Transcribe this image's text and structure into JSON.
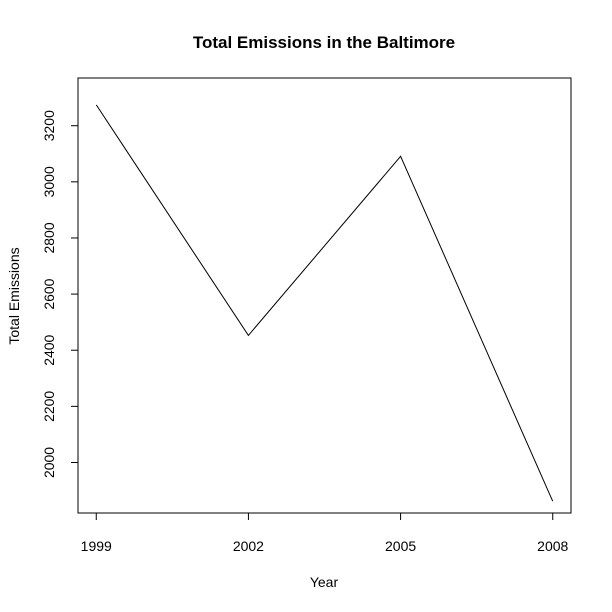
{
  "chart_data": {
    "type": "line",
    "title": "Total Emissions in the Baltimore",
    "xlabel": "Year",
    "ylabel": "Total Emissions",
    "x": [
      1999,
      2002,
      2005,
      2008
    ],
    "x_ticks": [
      "1999",
      "2002",
      "2005",
      "2008"
    ],
    "y_ticks": [
      2000,
      2200,
      2400,
      2600,
      2800,
      3000,
      3200
    ],
    "xlim": [
      1998.64,
      2008.36
    ],
    "ylim": [
      1820,
      3370
    ],
    "series": [
      {
        "values": [
          3274,
          2453,
          3091,
          1862
        ]
      }
    ],
    "grid": false,
    "legend": "none"
  }
}
